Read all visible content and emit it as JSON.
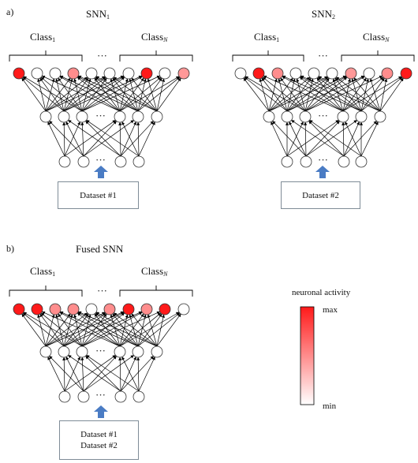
{
  "panel_a": {
    "label": "a)",
    "snn1": {
      "title_main": "SNN",
      "title_sub": "1",
      "class_first_main": "Class",
      "class_first_sub": "1",
      "class_last_main": "Class",
      "class_last_sub": "N",
      "dataset": "Dataset #1",
      "output_activity": [
        1.0,
        0.0,
        0.0,
        0.5,
        0.0,
        0.0,
        0.0,
        1.0,
        0.0,
        0.45
      ]
    },
    "snn2": {
      "title_main": "SNN",
      "title_sub": "2",
      "class_first_main": "Class",
      "class_first_sub": "1",
      "class_last_main": "Class",
      "class_last_sub": "N",
      "dataset": "Dataset #2",
      "output_activity": [
        0.0,
        1.0,
        0.5,
        0.0,
        0.0,
        0.0,
        0.45,
        0.0,
        0.5,
        1.0
      ]
    }
  },
  "panel_b": {
    "label": "b)",
    "fused": {
      "title": "Fused SNN",
      "class_first_main": "Class",
      "class_first_sub": "1",
      "class_last_main": "Class",
      "class_last_sub": "N",
      "datasets": [
        "Dataset #1",
        "Dataset #2"
      ],
      "output_activity": [
        1.0,
        1.0,
        0.5,
        0.5,
        0.0,
        0.5,
        1.0,
        0.5,
        1.0
      ]
    }
  },
  "legend": {
    "title": "neuronal activity",
    "max_label": "max",
    "min_label": "min",
    "color_max": "#ff1a1a",
    "color_min": "#ffffff"
  },
  "ellipsis": "···",
  "colors": {
    "arrow": "#4a7cc4",
    "box_border": "#7f8c97",
    "neuron_stroke": "#333333",
    "edge": "#000000"
  }
}
